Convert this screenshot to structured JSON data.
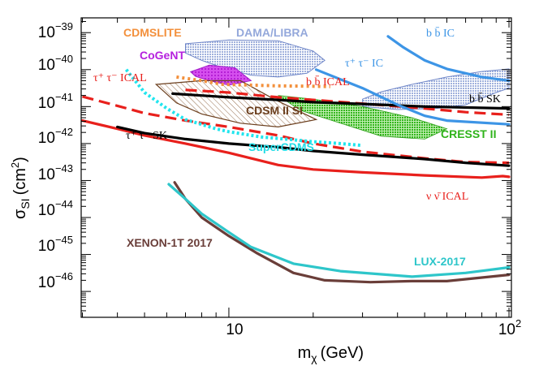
{
  "chart_data": {
    "type": "line",
    "scale": "log-log",
    "xlabel_main": "m",
    "xlabel_sub": "χ",
    "xlabel_unit": "(GeV)",
    "ylabel_main": "σ",
    "ylabel_sub": "SI",
    "ylabel_unit_open": "(cm",
    "ylabel_unit_exp": "2",
    "ylabel_unit_close": ")",
    "xlim": [
      2.97,
      102
    ],
    "ylim_exp": [
      -46.7,
      -38.6
    ],
    "x_ticks": [
      {
        "value": 10,
        "label": "10"
      },
      {
        "value": 100,
        "label": "10",
        "exp": "2"
      }
    ],
    "y_ticks": [
      {
        "exp_val": -39,
        "base": "10",
        "exp": "−39"
      },
      {
        "exp_val": -40,
        "base": "10",
        "exp": "−40"
      },
      {
        "exp_val": -41,
        "base": "10",
        "exp": "−41"
      },
      {
        "exp_val": -42,
        "base": "10",
        "exp": "−42"
      },
      {
        "exp_val": -43,
        "base": "10",
        "exp": "−43"
      },
      {
        "exp_val": -44,
        "base": "10",
        "exp": "−44"
      },
      {
        "exp_val": -45,
        "base": "10",
        "exp": "−45"
      },
      {
        "exp_val": -46,
        "base": "10",
        "exp": "−46"
      }
    ],
    "series": [
      {
        "name": "nu_nubar_ICAL",
        "color": "#e8201c",
        "width": 3.2,
        "dash": "",
        "points": [
          [
            3,
            -41.38
          ],
          [
            4,
            -41.6
          ],
          [
            5,
            -41.78
          ],
          [
            7,
            -42.0
          ],
          [
            10,
            -42.25
          ],
          [
            15,
            -42.58
          ],
          [
            20,
            -42.7
          ],
          [
            30,
            -42.78
          ],
          [
            50,
            -42.86
          ],
          [
            80,
            -42.92
          ],
          [
            95,
            -42.88
          ],
          [
            100,
            -42.9
          ]
        ]
      },
      {
        "name": "tau_ICAL",
        "color": "#e8201c",
        "width": 3.2,
        "dash": "14 7",
        "points": [
          [
            3,
            -40.73
          ],
          [
            4,
            -40.98
          ],
          [
            5,
            -41.18
          ],
          [
            7,
            -41.38
          ],
          [
            10,
            -41.55
          ],
          [
            15,
            -41.78
          ],
          [
            20,
            -42.0
          ],
          [
            30,
            -42.22
          ],
          [
            50,
            -42.4
          ],
          [
            70,
            -42.5
          ],
          [
            100,
            -42.52
          ]
        ]
      },
      {
        "name": "bb_ICAL",
        "color": "#e8201c",
        "width": 3.2,
        "dash": "14 7",
        "points": [
          [
            7,
            -40.55
          ],
          [
            10,
            -40.62
          ],
          [
            15,
            -40.75
          ],
          [
            20,
            -40.82
          ],
          [
            30,
            -40.92
          ],
          [
            50,
            -41.05
          ],
          [
            70,
            -41.15
          ],
          [
            100,
            -41.22
          ]
        ]
      },
      {
        "name": "tau_SK",
        "color": "#000000",
        "width": 3.2,
        "dash": "",
        "points": [
          [
            4,
            -41.55
          ],
          [
            5,
            -41.72
          ],
          [
            7,
            -41.88
          ],
          [
            10,
            -42.0
          ],
          [
            15,
            -42.1
          ],
          [
            20,
            -42.2
          ],
          [
            30,
            -42.3
          ],
          [
            50,
            -42.42
          ],
          [
            70,
            -42.52
          ],
          [
            100,
            -42.6
          ]
        ]
      },
      {
        "name": "bb_SK",
        "color": "#000000",
        "width": 3.2,
        "dash": "",
        "points": [
          [
            6.3,
            -40.65
          ],
          [
            8,
            -40.7
          ],
          [
            10,
            -40.75
          ],
          [
            15,
            -40.82
          ],
          [
            20,
            -40.88
          ],
          [
            30,
            -40.93
          ],
          [
            50,
            -41.0
          ],
          [
            100,
            -41.05
          ]
        ]
      },
      {
        "name": "tau_IC",
        "color": "#3d95e6",
        "width": 3.2,
        "dash": "",
        "points": [
          [
            20.5,
            -40.0
          ],
          [
            30,
            -40.5
          ],
          [
            40,
            -40.95
          ],
          [
            50,
            -41.25
          ],
          [
            60,
            -41.38
          ],
          [
            100,
            -41.48
          ]
        ]
      },
      {
        "name": "bb_IC",
        "color": "#3d95e6",
        "width": 3.2,
        "dash": "",
        "points": [
          [
            37,
            -39.1
          ],
          [
            42,
            -39.4
          ],
          [
            50,
            -39.75
          ],
          [
            60,
            -39.98
          ],
          [
            80,
            -40.2
          ],
          [
            100,
            -40.3
          ]
        ]
      },
      {
        "name": "CDMSLITE",
        "color": "#f3903c",
        "width": 4,
        "dash": "3 4",
        "points": [
          [
            6.5,
            -40.2
          ],
          [
            8,
            -40.3
          ],
          [
            9.5,
            -40.4
          ],
          [
            12,
            -40.42
          ],
          [
            15,
            -40.44
          ],
          [
            20,
            -40.45
          ],
          [
            23,
            -40.46
          ]
        ]
      },
      {
        "name": "SuperCDMS",
        "color": "#21e5ee",
        "width": 4,
        "dash": "3 3",
        "points": [
          [
            4.3,
            -40.0
          ],
          [
            5,
            -40.62
          ],
          [
            6,
            -41.05
          ],
          [
            7,
            -41.35
          ],
          [
            9,
            -41.6
          ],
          [
            10,
            -41.68
          ],
          [
            13,
            -41.82
          ],
          [
            17,
            -41.9
          ],
          [
            20,
            -41.95
          ],
          [
            25,
            -42.0
          ],
          [
            30,
            -42.05
          ]
        ]
      },
      {
        "name": "XENON1T_2017",
        "color": "#6a3e39",
        "width": 3.2,
        "dash": "",
        "points": [
          [
            6.4,
            -43.05
          ],
          [
            7,
            -43.5
          ],
          [
            8,
            -44.0
          ],
          [
            10,
            -44.5
          ],
          [
            12.5,
            -44.95
          ],
          [
            17,
            -45.5
          ],
          [
            22,
            -45.7
          ],
          [
            32,
            -45.75
          ],
          [
            45,
            -45.72
          ],
          [
            60,
            -45.72
          ],
          [
            100,
            -45.55
          ]
        ]
      },
      {
        "name": "LUX_2017",
        "color": "#2ec6ca",
        "width": 3.2,
        "dash": "",
        "points": [
          [
            6.1,
            -43.1
          ],
          [
            7,
            -43.5
          ],
          [
            8,
            -43.9
          ],
          [
            10,
            -44.4
          ],
          [
            12,
            -44.8
          ],
          [
            17,
            -45.25
          ],
          [
            25,
            -45.45
          ],
          [
            45,
            -45.6
          ],
          [
            70,
            -45.5
          ],
          [
            100,
            -45.35
          ]
        ]
      }
    ],
    "regions": [
      {
        "name": "DAMA_LIBRA",
        "fill": "#aab8e0",
        "hatch": "dots",
        "lw": 1,
        "polygons": [
          [
            [
              7,
              -39.3
            ],
            [
              10,
              -39.2
            ],
            [
              15,
              -39.22
            ],
            [
              20,
              -39.5
            ],
            [
              22,
              -39.75
            ],
            [
              19,
              -40.1
            ],
            [
              15,
              -40.2
            ],
            [
              12,
              -40.15
            ],
            [
              9.5,
              -39.95
            ],
            [
              8,
              -39.75
            ],
            [
              7,
              -39.55
            ]
          ],
          [
            [
              30,
              -41.0
            ],
            [
              40,
              -41.08
            ],
            [
              55,
              -41.05
            ],
            [
              70,
              -40.95
            ],
            [
              90,
              -40.62
            ],
            [
              100,
              -40.5
            ],
            [
              100,
              -39.98
            ],
            [
              80,
              -40.05
            ],
            [
              60,
              -40.2
            ],
            [
              45,
              -40.4
            ],
            [
              35,
              -40.6
            ],
            [
              30,
              -40.8
            ]
          ]
        ]
      },
      {
        "name": "CoGeNT",
        "fill": "#cc33ee",
        "hatch": "solid",
        "lw": 1,
        "polygons": [
          [
            [
              7.3,
              -40.06
            ],
            [
              8.5,
              -39.88
            ],
            [
              10.5,
              -39.95
            ],
            [
              12,
              -40.3
            ],
            [
              10,
              -40.42
            ],
            [
              8.5,
              -40.3
            ],
            [
              7.6,
              -40.18
            ]
          ]
        ]
      },
      {
        "name": "CDMS_II_Si",
        "fill": "#8b5a2b",
        "hatch": "lines",
        "lw": 1.2,
        "polygons": [
          [
            [
              5.5,
              -40.4
            ],
            [
              8,
              -40.3
            ],
            [
              11,
              -40.3
            ],
            [
              14.5,
              -40.8
            ],
            [
              20.5,
              -41.35
            ],
            [
              15,
              -41.55
            ],
            [
              11,
              -41.45
            ],
            [
              8,
              -41.2
            ],
            [
              6.5,
              -40.9
            ]
          ]
        ]
      },
      {
        "name": "CRESST_II",
        "fill": "#3fbf2c",
        "hatch": "dots",
        "lw": 0.8,
        "polygons": [
          [
            [
              15,
              -40.7
            ],
            [
              20,
              -40.8
            ],
            [
              30,
              -41.0
            ],
            [
              45,
              -41.3
            ],
            [
              60,
              -41.6
            ],
            [
              50,
              -41.88
            ],
            [
              35,
              -41.8
            ],
            [
              25,
              -41.45
            ],
            [
              18,
              -41.1
            ]
          ]
        ]
      }
    ],
    "annotations": [
      {
        "id": "cdmslite",
        "text": "CDMSLITE",
        "color": "#f3903c",
        "style": "bold"
      },
      {
        "id": "dama",
        "text": "DAMA/LIBRA",
        "color": "#94a8db",
        "style": "bold"
      },
      {
        "id": "cogent",
        "text": "CoGeNT",
        "color": "#b520de",
        "style": "bold"
      },
      {
        "id": "cdmsiisi",
        "text": "CDSM II SI",
        "color": "#6b3e1d",
        "style": "bold"
      },
      {
        "id": "cresst",
        "text": "CRESST II",
        "color": "#2fb31a",
        "style": "bold"
      },
      {
        "id": "supercdms",
        "text": "SuperCDMS",
        "color": "#21dce6",
        "style": "bold"
      },
      {
        "id": "xenon",
        "text": "XENON-1T 2017",
        "color": "#6a3e39",
        "style": "bold"
      },
      {
        "id": "lux",
        "text": "LUX-2017",
        "color": "#2ec6ca",
        "style": "bold"
      },
      {
        "id": "taulcal",
        "text": "τ⁺ τ⁻ ICAL",
        "color": "#e8201c",
        "style": "serif"
      },
      {
        "id": "bbical",
        "text": "b b̄ ICAL",
        "color": "#e8201c",
        "style": "serif"
      },
      {
        "id": "tausk",
        "text": "τ⁺ τ⁻ SK",
        "color": "#000000",
        "style": "serif"
      },
      {
        "id": "bbsk",
        "text": "b b̄ SK",
        "color": "#000000",
        "style": "serif"
      },
      {
        "id": "tauic",
        "text": "τ⁺ τ⁻ IC",
        "color": "#3d95e6",
        "style": "serif"
      },
      {
        "id": "bbic",
        "text": "b b̄ IC",
        "color": "#3d95e6",
        "style": "serif"
      },
      {
        "id": "nunubar",
        "text": "ν ν̄ ICAL",
        "color": "#e8201c",
        "style": "serif"
      }
    ]
  }
}
